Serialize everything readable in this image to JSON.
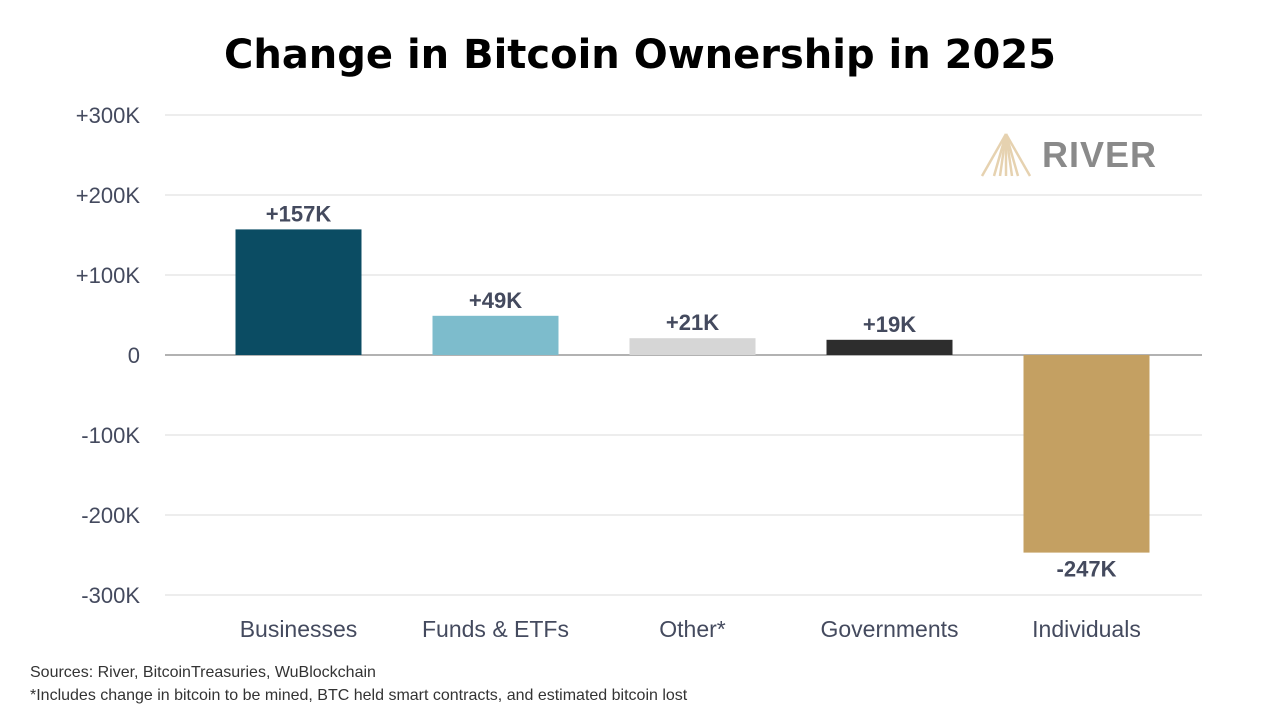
{
  "chart_data": {
    "type": "bar",
    "title": "Change in Bitcoin Ownership in 2025",
    "categories": [
      "Businesses",
      "Funds & ETFs",
      "Other*",
      "Governments",
      "Individuals"
    ],
    "values": [
      157000,
      49000,
      21000,
      19000,
      -247000
    ],
    "data_labels": [
      "+157K",
      "+49K",
      "+21K",
      "+19K",
      "-247K"
    ],
    "colors": [
      "#0b4c63",
      "#7dbccc",
      "#d6d6d6",
      "#2d2d2d",
      "#c4a062"
    ],
    "ylim": [
      -300000,
      300000
    ],
    "yticks": [
      300000,
      200000,
      100000,
      0,
      -100000,
      -200000,
      -300000
    ],
    "ytick_labels": [
      "+300K",
      "+200K",
      "+100K",
      "0",
      "-100K",
      "-200K",
      "-300K"
    ],
    "grid": true,
    "xlabel": "",
    "ylabel": ""
  },
  "logo": {
    "text": "RIVER",
    "color": "#8a8a8a",
    "mark_color": "#e6d2b0"
  },
  "footnotes": {
    "sources": "Sources: River, BitcoinTreasuries, WuBlockchain",
    "note": "*Includes change in bitcoin to be mined, BTC held smart contracts, and estimated bitcoin lost"
  }
}
